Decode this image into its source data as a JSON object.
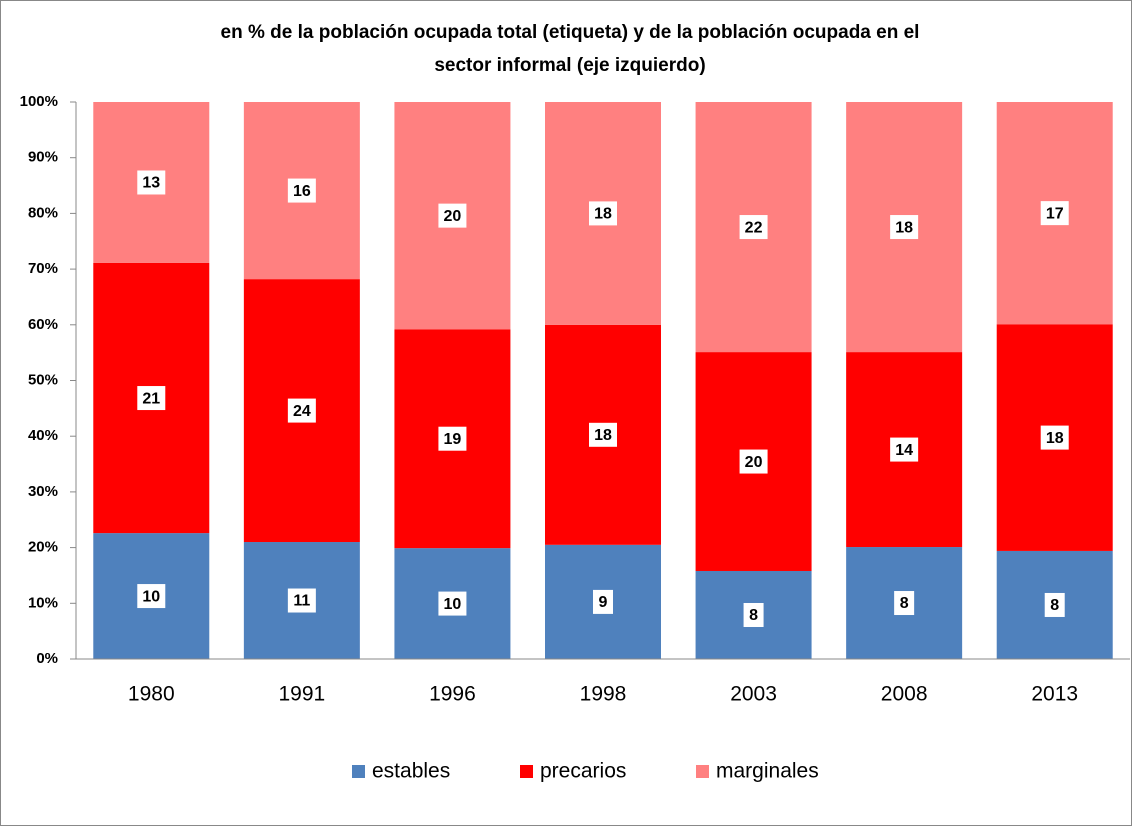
{
  "chart_data": {
    "type": "stacked_bar",
    "title": [
      "en % de la población ocupada total (etiqueta) y de la población ocupada en el",
      "sector informal (eje izquierdo)"
    ],
    "categories": [
      "1980",
      "1991",
      "1996",
      "1998",
      "2003",
      "2008",
      "2013"
    ],
    "series": [
      {
        "name": "estables",
        "color": "#4f81bd",
        "values": [
          22.6,
          21.0,
          19.9,
          20.5,
          15.8,
          20.1,
          19.4
        ],
        "labels": [
          10,
          11,
          10,
          9,
          8,
          8,
          8
        ]
      },
      {
        "name": "precarios",
        "color": "#ff0000",
        "values": [
          48.5,
          47.2,
          39.3,
          39.5,
          39.3,
          35.0,
          40.7
        ],
        "labels": [
          21,
          24,
          19,
          18,
          20,
          14,
          18
        ]
      },
      {
        "name": "marginales",
        "color": "#ff8080",
        "values": [
          28.9,
          31.8,
          40.8,
          40.0,
          44.9,
          44.9,
          39.9
        ],
        "labels": [
          13,
          16,
          20,
          18,
          22,
          18,
          17
        ]
      }
    ],
    "ylim": [
      0,
      100
    ],
    "yticks": [
      {
        "value": 0,
        "label": "0%"
      },
      {
        "value": 10,
        "label": "10%"
      },
      {
        "value": 20,
        "label": "20%"
      },
      {
        "value": 30,
        "label": "30%"
      },
      {
        "value": 40,
        "label": "40%"
      },
      {
        "value": 50,
        "label": "50%"
      },
      {
        "value": 60,
        "label": "60%"
      },
      {
        "value": 70,
        "label": "70%"
      },
      {
        "value": 80,
        "label": "80%"
      },
      {
        "value": 90,
        "label": "90%"
      },
      {
        "value": 100,
        "label": "100%"
      }
    ],
    "legend": "bottom"
  }
}
